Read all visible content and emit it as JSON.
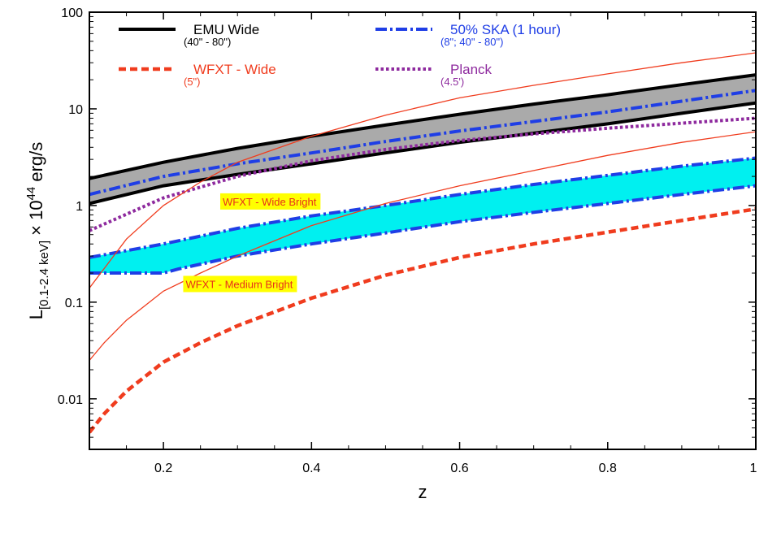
{
  "chart_data": {
    "type": "line",
    "title": "",
    "xlabel": "z",
    "ylabel": {
      "main": "L",
      "subscript": "[0.1-2.4 keV]",
      "mid": " × 10",
      "superscript": "44",
      "tail": " erg/s"
    },
    "xlim": [
      0.1,
      1.0
    ],
    "ylim": [
      0.003,
      100
    ],
    "yscale": "log",
    "x_ticks": [
      0.2,
      0.4,
      0.6,
      0.8,
      1.0
    ],
    "x_tick_labels": [
      "0.2",
      "0.4",
      "0.6",
      "0.8",
      "1"
    ],
    "y_ticks": [
      0.01,
      0.1,
      1,
      10,
      100
    ],
    "y_tick_labels": [
      "0.01",
      "0.1",
      "1",
      "10",
      "100"
    ],
    "colors": {
      "emu": "#000000",
      "emu_fill": "#aaaaaa",
      "ska": "#1f3ee6",
      "ska_fill": "#00f0f0",
      "wfxt": "#f03c1e",
      "planck": "#8e2a9e",
      "annotation_bg": "#ffff00",
      "annotation_text": "#e8301a"
    },
    "series": [
      {
        "name": "EMU Wide upper",
        "style": "solid-thick",
        "color": "#000000",
        "x": [
          0.1,
          0.2,
          0.3,
          0.4,
          0.5,
          0.6,
          0.7,
          0.8,
          0.9,
          1.0
        ],
        "values": [
          1.9,
          2.8,
          3.9,
          5.2,
          6.8,
          8.8,
          11.2,
          14.0,
          17.8,
          22.5
        ]
      },
      {
        "name": "EMU Wide lower",
        "style": "solid-thick",
        "color": "#000000",
        "x": [
          0.1,
          0.2,
          0.3,
          0.4,
          0.5,
          0.6,
          0.7,
          0.8,
          0.9,
          1.0
        ],
        "values": [
          1.05,
          1.6,
          2.1,
          2.7,
          3.5,
          4.5,
          5.6,
          7.0,
          9.0,
          11.5
        ]
      },
      {
        "name": "50% SKA (1 hour) 8\"",
        "style": "dashdot",
        "color": "#1f3ee6",
        "x": [
          0.1,
          0.2,
          0.3,
          0.4,
          0.5,
          0.6,
          0.7,
          0.8,
          0.9,
          1.0
        ],
        "values": [
          1.3,
          2.0,
          2.7,
          3.5,
          4.6,
          5.9,
          7.4,
          9.3,
          12.0,
          15.5
        ]
      },
      {
        "name": "50% SKA upper (40\" - 80\")",
        "style": "dashdot",
        "color": "#1f3ee6",
        "x": [
          0.1,
          0.2,
          0.3,
          0.4,
          0.5,
          0.6,
          0.7,
          0.8,
          0.9,
          1.0
        ],
        "values": [
          0.29,
          0.4,
          0.58,
          0.78,
          1.0,
          1.3,
          1.65,
          2.05,
          2.55,
          3.1
        ]
      },
      {
        "name": "50% SKA lower (40\" - 80\")",
        "style": "dashdot",
        "color": "#1f3ee6",
        "x": [
          0.1,
          0.15,
          0.2,
          0.22,
          0.3,
          0.4,
          0.5,
          0.6,
          0.7,
          0.8,
          0.9,
          1.0
        ],
        "values": [
          0.2,
          0.2,
          0.2,
          0.22,
          0.3,
          0.4,
          0.52,
          0.68,
          0.85,
          1.05,
          1.3,
          1.6
        ]
      },
      {
        "name": "Planck (4.5')",
        "style": "dotted",
        "color": "#8e2a9e",
        "x": [
          0.1,
          0.2,
          0.3,
          0.4,
          0.5,
          0.6,
          0.7,
          0.8,
          0.9,
          1.0
        ],
        "values": [
          0.55,
          1.2,
          2.0,
          2.9,
          3.8,
          4.7,
          5.5,
          6.3,
          7.1,
          8.0
        ]
      },
      {
        "name": "WFXT - Wide (5\")",
        "style": "dashed",
        "color": "#f03c1e",
        "x": [
          0.1,
          0.12,
          0.15,
          0.2,
          0.25,
          0.3,
          0.4,
          0.5,
          0.6,
          0.7,
          0.8,
          0.9,
          1.0
        ],
        "values": [
          0.0045,
          0.007,
          0.012,
          0.024,
          0.038,
          0.057,
          0.11,
          0.19,
          0.29,
          0.4,
          0.53,
          0.7,
          0.92
        ]
      },
      {
        "name": "WFXT - Wide Bright",
        "style": "thin",
        "color": "#f03c1e",
        "x": [
          0.1,
          0.15,
          0.2,
          0.25,
          0.3,
          0.4,
          0.5,
          0.6,
          0.7,
          0.8,
          0.9,
          1.0
        ],
        "values": [
          0.14,
          0.45,
          1.0,
          1.75,
          2.8,
          5.2,
          8.6,
          13.0,
          17.5,
          23.0,
          30.0,
          38.0
        ]
      },
      {
        "name": "WFXT - Medium Bright",
        "style": "thin",
        "color": "#f03c1e",
        "x": [
          0.1,
          0.12,
          0.15,
          0.2,
          0.25,
          0.3,
          0.4,
          0.5,
          0.6,
          0.7,
          0.8,
          0.9,
          1.0
        ],
        "values": [
          0.025,
          0.038,
          0.065,
          0.13,
          0.2,
          0.3,
          0.62,
          1.05,
          1.6,
          2.3,
          3.3,
          4.5,
          5.8
        ]
      }
    ],
    "bands": [
      {
        "name": "EMU Wide band",
        "fill": "#aaaaaa",
        "upper_series": 0,
        "lower_series": 1
      },
      {
        "name": "SKA band",
        "fill": "#00f0f0",
        "upper_series": 3,
        "lower_series": 4
      }
    ],
    "legend": {
      "placement": "top",
      "entries": [
        {
          "name": "EMU Wide",
          "detail": "(40\" - 80\")",
          "style": "solid-thick",
          "color": "#000000",
          "text_color": "#000000"
        },
        {
          "name": "50% SKA (1 hour)",
          "detail": "(8\"; 40\" - 80\")",
          "style": "dashdot",
          "color": "#1f3ee6",
          "text_color": "#1f3ee6"
        },
        {
          "name": "WFXT - Wide",
          "detail": "(5\")",
          "style": "dashed",
          "color": "#f03c1e",
          "text_color": "#f03c1e"
        },
        {
          "name": "Planck",
          "detail": "(4.5')",
          "style": "dotted",
          "color": "#8e2a9e",
          "text_color": "#8e2a9e"
        }
      ]
    },
    "annotations": [
      {
        "text": "WFXT - Wide Bright",
        "x": 0.28,
        "y": 1.0
      },
      {
        "text": "WFXT - Medium Bright",
        "x": 0.23,
        "y": 0.14
      }
    ]
  }
}
